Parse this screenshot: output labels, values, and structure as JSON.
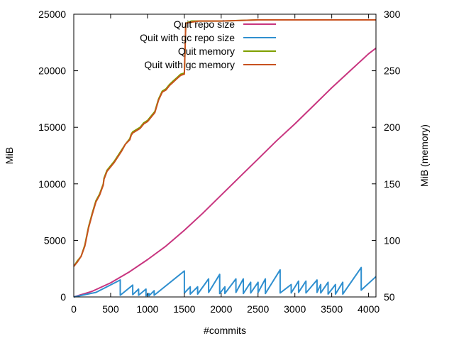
{
  "chart_data": {
    "type": "line",
    "xlabel": "#commits",
    "ylabel": "MiB",
    "y2label": "MiB (memory)",
    "xlim": [
      0,
      4100
    ],
    "ylim": [
      0,
      25000
    ],
    "y2lim": [
      50,
      300
    ],
    "xticks": [
      0,
      500,
      1000,
      1500,
      2000,
      2500,
      3000,
      3500,
      4000
    ],
    "yticks": [
      0,
      5000,
      10000,
      15000,
      20000,
      25000
    ],
    "y2ticks": [
      50,
      100,
      150,
      200,
      250,
      300
    ],
    "grid": false,
    "legend_position": "top-right",
    "series": [
      {
        "name": "Quit repo size",
        "axis": "left",
        "color": "#c8357f",
        "x": [
          0,
          250,
          500,
          750,
          1000,
          1250,
          1500,
          1750,
          2000,
          2250,
          2500,
          2750,
          3000,
          3250,
          3500,
          3750,
          4000,
          4100
        ],
        "y": [
          0,
          500,
          1250,
          2200,
          3300,
          4500,
          5900,
          7400,
          9000,
          10600,
          12200,
          13800,
          15300,
          16900,
          18500,
          20000,
          21500,
          22000
        ]
      },
      {
        "name": "Quit with gc repo size",
        "axis": "left",
        "color": "#2f8fcf",
        "x": [
          0,
          300,
          630,
          630,
          800,
          800,
          880,
          880,
          980,
          980,
          1020,
          1020,
          1090,
          1090,
          1500,
          1500,
          1580,
          1580,
          1680,
          1680,
          1830,
          1830,
          1980,
          1980,
          2050,
          2050,
          2200,
          2200,
          2300,
          2300,
          2400,
          2400,
          2500,
          2500,
          2600,
          2600,
          2800,
          2800,
          2950,
          2950,
          3050,
          3050,
          3150,
          3150,
          3300,
          3300,
          3350,
          3350,
          3450,
          3450,
          3550,
          3550,
          3650,
          3650,
          3900,
          3900,
          4100
        ],
        "y": [
          0,
          400,
          1500,
          150,
          1050,
          200,
          700,
          150,
          700,
          100,
          300,
          100,
          550,
          150,
          2300,
          350,
          900,
          250,
          900,
          250,
          1600,
          400,
          2000,
          300,
          900,
          300,
          1600,
          400,
          1600,
          300,
          1300,
          350,
          1300,
          400,
          1600,
          300,
          2400,
          350,
          1100,
          350,
          1400,
          400,
          1400,
          350,
          1500,
          400,
          1100,
          350,
          1300,
          250,
          1100,
          250,
          1300,
          250,
          2600,
          600,
          1800
        ]
      },
      {
        "name": "Quit memory",
        "axis": "right",
        "color": "#7f9f00",
        "x": [
          0,
          50,
          100,
          150,
          200,
          250,
          300,
          350,
          400,
          410,
          450,
          500,
          550,
          600,
          650,
          700,
          760,
          780,
          800,
          850,
          900,
          950,
          1000,
          1050,
          1100,
          1150,
          1200,
          1250,
          1300,
          1350,
          1400,
          1450,
          1500,
          1520,
          1600,
          1700,
          1800,
          2000,
          2500,
          3000,
          3500,
          4100
        ],
        "y": [
          77,
          82,
          86,
          96,
          112,
          124,
          135,
          141,
          150,
          155,
          162,
          166,
          170,
          175,
          180,
          185,
          190,
          194,
          196,
          198,
          200,
          204,
          206,
          210,
          214,
          225,
          232,
          234,
          238,
          241,
          244,
          247,
          248,
          292,
          294,
          294,
          294,
          294,
          295,
          295,
          295,
          295
        ]
      },
      {
        "name": "Quit with gc memory",
        "axis": "right",
        "color": "#c8521f",
        "x": [
          0,
          50,
          100,
          150,
          200,
          250,
          300,
          350,
          400,
          410,
          450,
          500,
          550,
          600,
          650,
          700,
          760,
          780,
          800,
          850,
          900,
          950,
          1000,
          1050,
          1100,
          1150,
          1200,
          1250,
          1300,
          1350,
          1400,
          1450,
          1500,
          1520,
          1600,
          1700,
          1800,
          2000,
          2500,
          3000,
          3500,
          4100
        ],
        "y": [
          77,
          81,
          86,
          95,
          111,
          123,
          134,
          140,
          149,
          154,
          161,
          165,
          169,
          174,
          179,
          185,
          189,
          193,
          195,
          197,
          199,
          203,
          205,
          209,
          213,
          224,
          231,
          233,
          237,
          240,
          243,
          246,
          247,
          292,
          293,
          294,
          294,
          294,
          295,
          295,
          295,
          295
        ]
      }
    ]
  }
}
